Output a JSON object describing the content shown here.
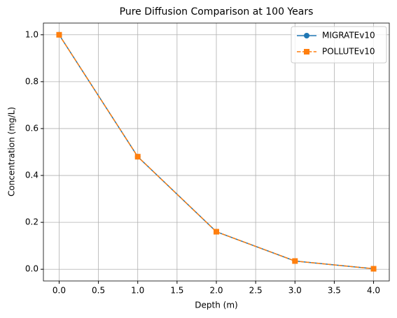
{
  "chart_data": {
    "type": "line",
    "title": "Pure Diffusion Comparison at 100 Years",
    "xlabel": "Depth (m)",
    "ylabel": "Concentration (mg/L)",
    "x": [
      0,
      1,
      2,
      3,
      4
    ],
    "series": [
      {
        "name": "MIGRATEv10",
        "color": "#1f77b4",
        "marker": "circle",
        "linestyle": "solid",
        "values": [
          1.0,
          0.48,
          0.16,
          0.035,
          0.002
        ]
      },
      {
        "name": "POLLUTEv10",
        "color": "#ff7f0e",
        "marker": "square",
        "linestyle": "dashed",
        "values": [
          1.0,
          0.48,
          0.16,
          0.035,
          0.002
        ]
      }
    ],
    "xlim": [
      -0.2,
      4.2
    ],
    "xticks": [
      {
        "value": 0,
        "label": "0.0"
      },
      {
        "value": 0.5,
        "label": "0.5"
      },
      {
        "value": 1,
        "label": "1.0"
      },
      {
        "value": 1.5,
        "label": "1.5"
      },
      {
        "value": 2,
        "label": "2.0"
      },
      {
        "value": 2.5,
        "label": "2.5"
      },
      {
        "value": 3,
        "label": "3.0"
      },
      {
        "value": 3.5,
        "label": "3.5"
      },
      {
        "value": 4,
        "label": "4.0"
      }
    ],
    "ylim": [
      -0.05,
      1.05
    ],
    "yticks": [
      {
        "value": 0,
        "label": "0.0"
      },
      {
        "value": 0.2,
        "label": "0.2"
      },
      {
        "value": 0.4,
        "label": "0.4"
      },
      {
        "value": 0.6,
        "label": "0.6"
      },
      {
        "value": 0.8,
        "label": "0.8"
      },
      {
        "value": 1,
        "label": "1.0"
      }
    ],
    "grid": true,
    "legend": "upper right"
  }
}
